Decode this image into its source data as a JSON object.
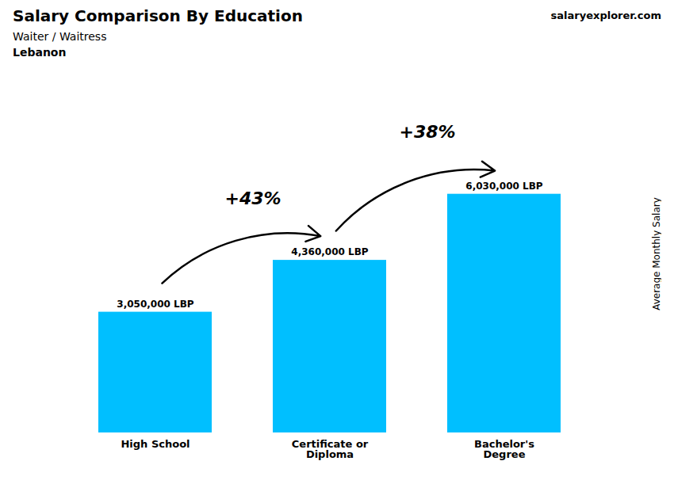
{
  "chart_data": {
    "type": "bar",
    "title": "Salary Comparison By Education",
    "subtitle": "Waiter / Waitress",
    "ylabel": "Average Monthly Salary",
    "categories": [
      "High School",
      "Certificate or\nDiploma",
      "Bachelor's\nDegree"
    ],
    "values": [
      3050000,
      4360000,
      6030000
    ],
    "value_labels": [
      "3,050,000 LBP",
      "4,360,000 LBP",
      "6,030,000 LBP"
    ],
    "data_labels": true,
    "color": "#00bfff",
    "ylim": [
      0,
      9045000
    ],
    "tick_labels": "x",
    "grid": false,
    "annotations": [
      {
        "text": "Lebanon"
      },
      {
        "text": "salaryexplorer.com"
      },
      {
        "text": "+43%",
        "from": "High School",
        "to": "Certificate or\nDiploma"
      },
      {
        "text": "+38%",
        "from": "Certificate or\nDiploma",
        "to": "Bachelor's\nDegree"
      }
    ]
  }
}
